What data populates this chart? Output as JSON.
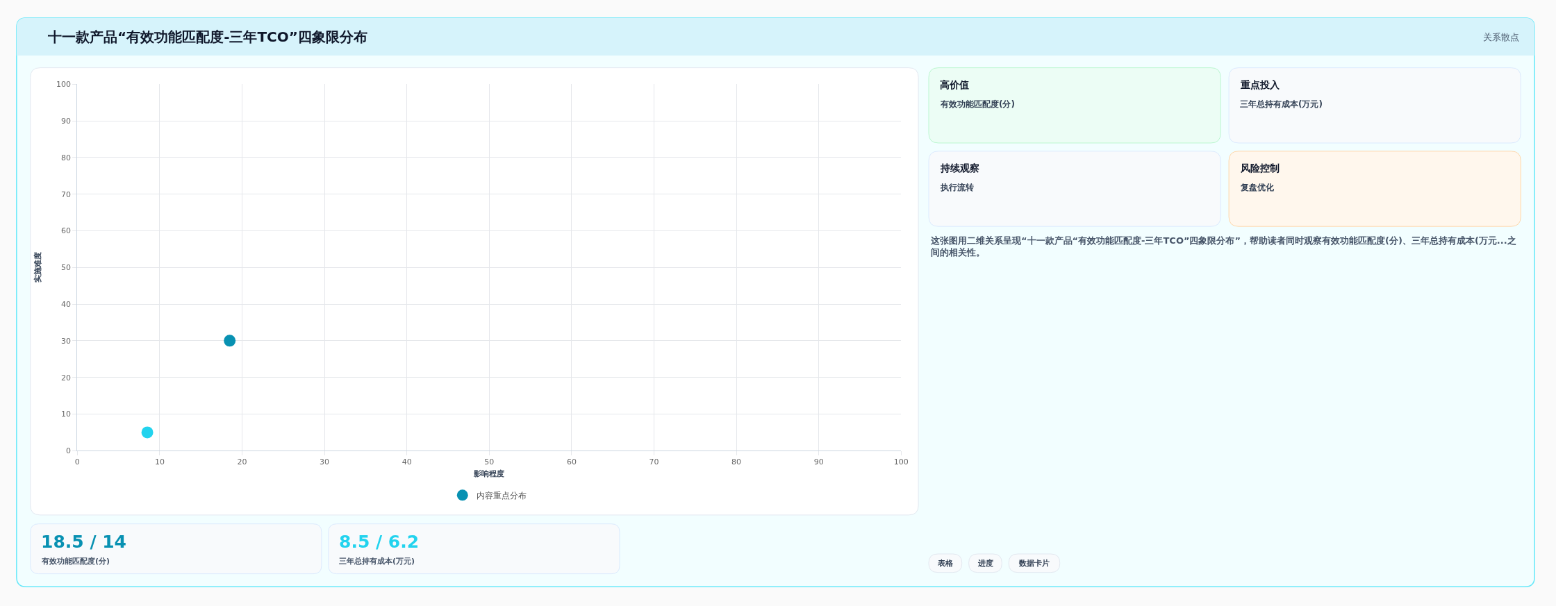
{
  "chart_data": [
    {
      "type": "scatter",
      "title": "十一款产品“有效功能匹配度-三年TCO”四象限分布",
      "annotations": [
        "关系散点"
      ],
      "xlabel": "影响程度",
      "ylabel": "实施难度",
      "x": [
        18.5,
        8.5
      ],
      "series": [
        {
          "name": "内容重点分布",
          "colors": [
            "#0891b2",
            "#22d3ee"
          ],
          "values": [
            30,
            5
          ]
        }
      ],
      "xlim": [
        0,
        100
      ],
      "ylim": [
        0,
        100
      ],
      "xticks": [
        0,
        10,
        20,
        30,
        40,
        50,
        60,
        70,
        80,
        90,
        100
      ],
      "yticks": [
        0,
        10,
        20,
        30,
        40,
        50,
        60,
        70,
        80,
        90,
        100
      ],
      "grid": true,
      "legend": "bottom",
      "marker": "circle"
    },
    {
      "type": "other",
      "categories": [
        "有效功能匹配度(分)",
        "三年总持有成本(万元)"
      ],
      "value_labels": [
        "18.5 / 14",
        "8.5 / 6.2"
      ]
    },
    {
      "type": "other",
      "categories": [
        "高价值",
        "重点投入",
        "持续观察",
        "风险控制"
      ],
      "value_labels": [
        "有效功能匹配度(分)",
        "三年总持有成本(万元)",
        "执行流转",
        "复盘优化"
      ],
      "colors": [
        "#ecfdf5",
        "#f8fafc",
        "#f8fafc",
        "#fff7ed"
      ],
      "annotations": [
        "这张图用二维关系呈现“十一款产品“有效功能匹配度-三年TCO”四象限分布”，帮助读者同时观察有效功能匹配度(分)、三年总持有成本(万元...之间的相关性。",
        "表格",
        "进度",
        "数据卡片"
      ]
    }
  ]
}
